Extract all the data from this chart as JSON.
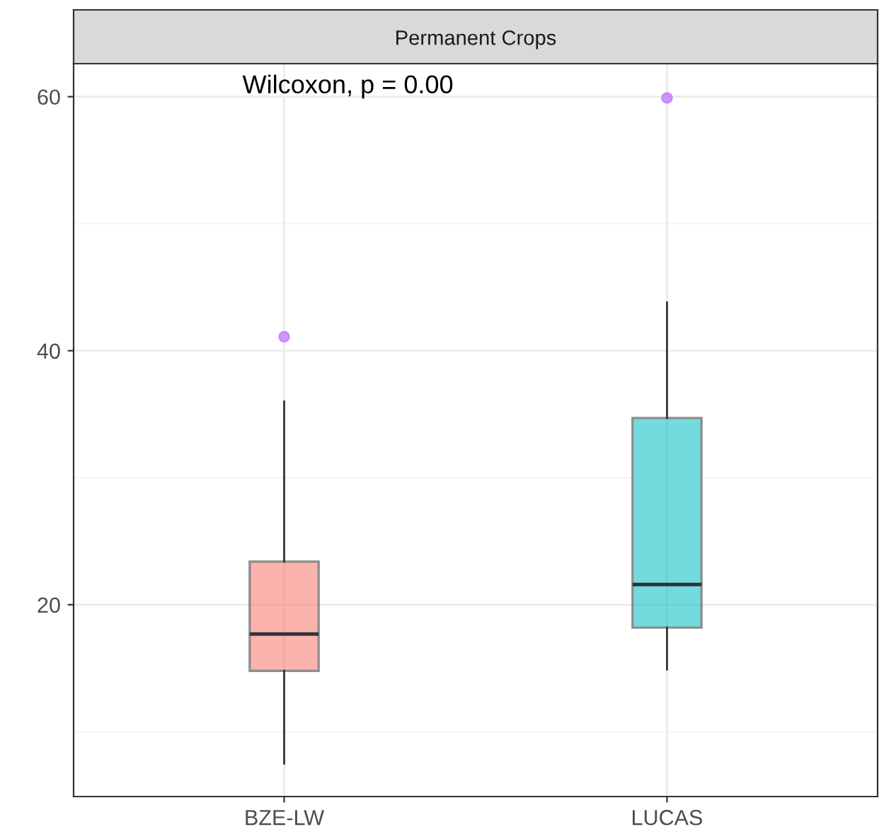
{
  "chart_data": {
    "type": "box",
    "title": "Permanent Crops",
    "categories": [
      "BZE-LW",
      "LUCAS"
    ],
    "boxes": [
      {
        "low": 7.5,
        "q1": 14.8,
        "median": 17.7,
        "q3": 23.4,
        "high": 36.0,
        "outliers": [
          41.1
        ]
      },
      {
        "low": 14.9,
        "q1": 18.2,
        "median": 21.6,
        "q3": 34.7,
        "high": 43.8,
        "outliers": [
          59.9
        ]
      }
    ],
    "colors": [
      "#f8766d",
      "#00bfc4"
    ],
    "ylim": [
      4.9,
      62.6
    ],
    "yticks": [
      20,
      40,
      60
    ],
    "grid": true,
    "annotations": [
      "Wilcoxon, p = 0.00"
    ]
  }
}
